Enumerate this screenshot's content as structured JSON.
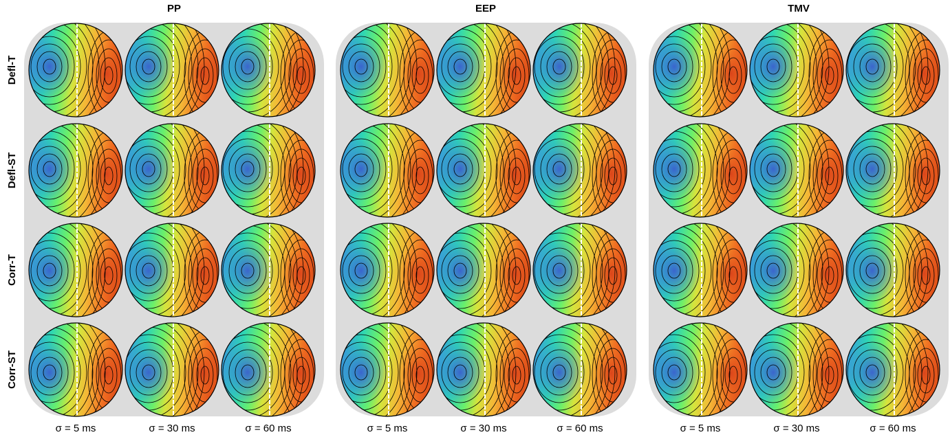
{
  "panels": [
    {
      "title": "PP"
    },
    {
      "title": "EEP"
    },
    {
      "title": "TMV"
    }
  ],
  "rows": [
    "Defl-T",
    "Defl-ST",
    "Corr-T",
    "Corr-ST"
  ],
  "columns": [
    "σ = 5 ms",
    "σ = 30 ms",
    "σ = 60 ms"
  ]
}
